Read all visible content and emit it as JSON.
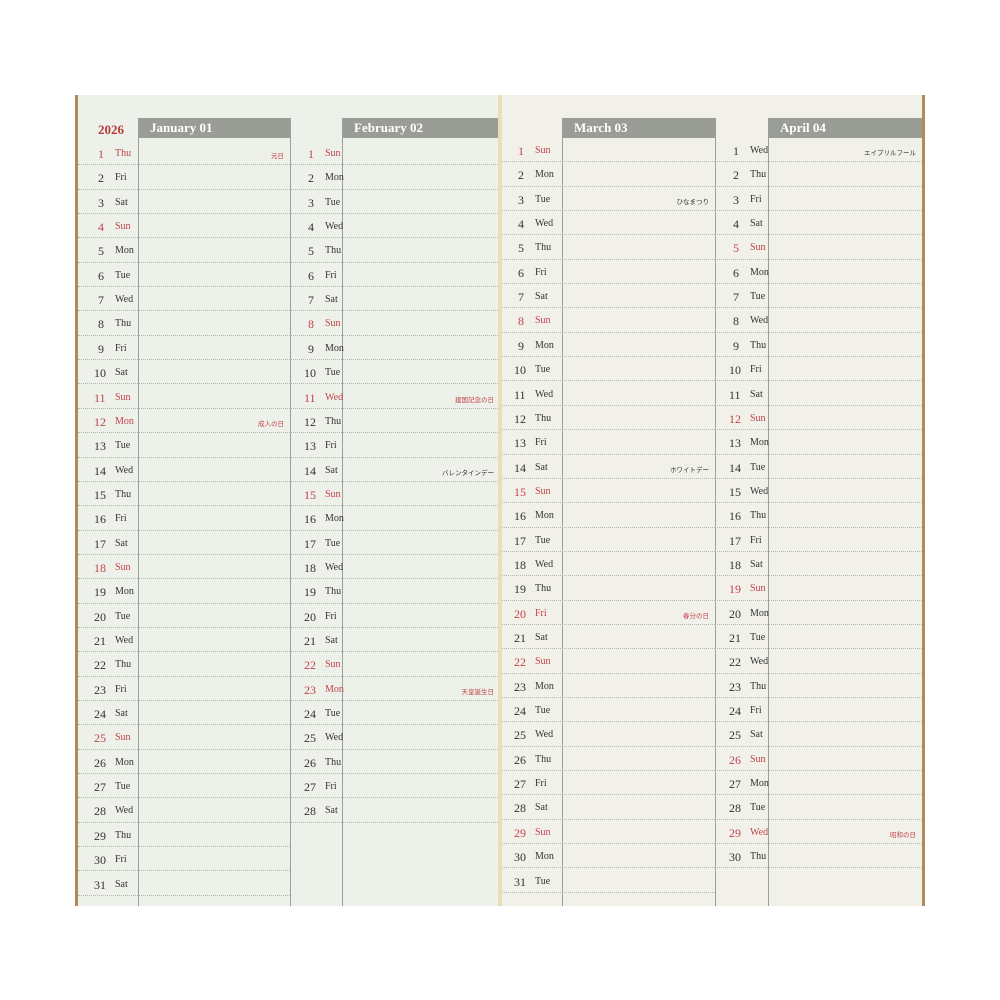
{
  "year": "2026",
  "colors": {
    "holiday": "#c0444a",
    "header_bar": "#9a9d96",
    "paper": "#eef0ea",
    "cover": "#b08a5c"
  },
  "months": [
    {
      "title": "January 01",
      "days": [
        {
          "d": "1",
          "w": "Thu",
          "red": true,
          "note": "元日"
        },
        {
          "d": "2",
          "w": "Fri"
        },
        {
          "d": "3",
          "w": "Sat"
        },
        {
          "d": "4",
          "w": "Sun",
          "red": true
        },
        {
          "d": "5",
          "w": "Mon"
        },
        {
          "d": "6",
          "w": "Tue"
        },
        {
          "d": "7",
          "w": "Wed"
        },
        {
          "d": "8",
          "w": "Thu"
        },
        {
          "d": "9",
          "w": "Fri"
        },
        {
          "d": "10",
          "w": "Sat"
        },
        {
          "d": "11",
          "w": "Sun",
          "red": true
        },
        {
          "d": "12",
          "w": "Mon",
          "red": true,
          "note": "成人の日"
        },
        {
          "d": "13",
          "w": "Tue"
        },
        {
          "d": "14",
          "w": "Wed"
        },
        {
          "d": "15",
          "w": "Thu"
        },
        {
          "d": "16",
          "w": "Fri"
        },
        {
          "d": "17",
          "w": "Sat"
        },
        {
          "d": "18",
          "w": "Sun",
          "red": true
        },
        {
          "d": "19",
          "w": "Mon"
        },
        {
          "d": "20",
          "w": "Tue"
        },
        {
          "d": "21",
          "w": "Wed"
        },
        {
          "d": "22",
          "w": "Thu"
        },
        {
          "d": "23",
          "w": "Fri"
        },
        {
          "d": "24",
          "w": "Sat"
        },
        {
          "d": "25",
          "w": "Sun",
          "red": true
        },
        {
          "d": "26",
          "w": "Mon"
        },
        {
          "d": "27",
          "w": "Tue"
        },
        {
          "d": "28",
          "w": "Wed"
        },
        {
          "d": "29",
          "w": "Thu"
        },
        {
          "d": "30",
          "w": "Fri"
        },
        {
          "d": "31",
          "w": "Sat"
        }
      ]
    },
    {
      "title": "February 02",
      "days": [
        {
          "d": "1",
          "w": "Sun",
          "red": true
        },
        {
          "d": "2",
          "w": "Mon"
        },
        {
          "d": "3",
          "w": "Tue"
        },
        {
          "d": "4",
          "w": "Wed"
        },
        {
          "d": "5",
          "w": "Thu"
        },
        {
          "d": "6",
          "w": "Fri"
        },
        {
          "d": "7",
          "w": "Sat"
        },
        {
          "d": "8",
          "w": "Sun",
          "red": true
        },
        {
          "d": "9",
          "w": "Mon"
        },
        {
          "d": "10",
          "w": "Tue"
        },
        {
          "d": "11",
          "w": "Wed",
          "red": true,
          "note": "建国記念の日"
        },
        {
          "d": "12",
          "w": "Thu"
        },
        {
          "d": "13",
          "w": "Fri"
        },
        {
          "d": "14",
          "w": "Sat",
          "note": "バレンタインデー"
        },
        {
          "d": "15",
          "w": "Sun",
          "red": true
        },
        {
          "d": "16",
          "w": "Mon"
        },
        {
          "d": "17",
          "w": "Tue"
        },
        {
          "d": "18",
          "w": "Wed"
        },
        {
          "d": "19",
          "w": "Thu"
        },
        {
          "d": "20",
          "w": "Fri"
        },
        {
          "d": "21",
          "w": "Sat"
        },
        {
          "d": "22",
          "w": "Sun",
          "red": true
        },
        {
          "d": "23",
          "w": "Mon",
          "red": true,
          "note": "天皇誕生日"
        },
        {
          "d": "24",
          "w": "Tue"
        },
        {
          "d": "25",
          "w": "Wed"
        },
        {
          "d": "26",
          "w": "Thu"
        },
        {
          "d": "27",
          "w": "Fri"
        },
        {
          "d": "28",
          "w": "Sat"
        }
      ]
    },
    {
      "title": "March 03",
      "days": [
        {
          "d": "1",
          "w": "Sun",
          "red": true
        },
        {
          "d": "2",
          "w": "Mon"
        },
        {
          "d": "3",
          "w": "Tue",
          "note": "ひなまつり"
        },
        {
          "d": "4",
          "w": "Wed"
        },
        {
          "d": "5",
          "w": "Thu"
        },
        {
          "d": "6",
          "w": "Fri"
        },
        {
          "d": "7",
          "w": "Sat"
        },
        {
          "d": "8",
          "w": "Sun",
          "red": true
        },
        {
          "d": "9",
          "w": "Mon"
        },
        {
          "d": "10",
          "w": "Tue"
        },
        {
          "d": "11",
          "w": "Wed"
        },
        {
          "d": "12",
          "w": "Thu"
        },
        {
          "d": "13",
          "w": "Fri"
        },
        {
          "d": "14",
          "w": "Sat",
          "note": "ホワイトデー"
        },
        {
          "d": "15",
          "w": "Sun",
          "red": true
        },
        {
          "d": "16",
          "w": "Mon"
        },
        {
          "d": "17",
          "w": "Tue"
        },
        {
          "d": "18",
          "w": "Wed"
        },
        {
          "d": "19",
          "w": "Thu"
        },
        {
          "d": "20",
          "w": "Fri",
          "red": true,
          "note": "春分の日"
        },
        {
          "d": "21",
          "w": "Sat"
        },
        {
          "d": "22",
          "w": "Sun",
          "red": true
        },
        {
          "d": "23",
          "w": "Mon"
        },
        {
          "d": "24",
          "w": "Tue"
        },
        {
          "d": "25",
          "w": "Wed"
        },
        {
          "d": "26",
          "w": "Thu"
        },
        {
          "d": "27",
          "w": "Fri"
        },
        {
          "d": "28",
          "w": "Sat"
        },
        {
          "d": "29",
          "w": "Sun",
          "red": true
        },
        {
          "d": "30",
          "w": "Mon"
        },
        {
          "d": "31",
          "w": "Tue"
        }
      ]
    },
    {
      "title": "April 04",
      "days": [
        {
          "d": "1",
          "w": "Wed",
          "note": "エイプリルフール"
        },
        {
          "d": "2",
          "w": "Thu"
        },
        {
          "d": "3",
          "w": "Fri"
        },
        {
          "d": "4",
          "w": "Sat"
        },
        {
          "d": "5",
          "w": "Sun",
          "red": true
        },
        {
          "d": "6",
          "w": "Mon"
        },
        {
          "d": "7",
          "w": "Tue"
        },
        {
          "d": "8",
          "w": "Wed"
        },
        {
          "d": "9",
          "w": "Thu"
        },
        {
          "d": "10",
          "w": "Fri"
        },
        {
          "d": "11",
          "w": "Sat"
        },
        {
          "d": "12",
          "w": "Sun",
          "red": true
        },
        {
          "d": "13",
          "w": "Mon"
        },
        {
          "d": "14",
          "w": "Tue"
        },
        {
          "d": "15",
          "w": "Wed"
        },
        {
          "d": "16",
          "w": "Thu"
        },
        {
          "d": "17",
          "w": "Fri"
        },
        {
          "d": "18",
          "w": "Sat"
        },
        {
          "d": "19",
          "w": "Sun",
          "red": true
        },
        {
          "d": "20",
          "w": "Mon"
        },
        {
          "d": "21",
          "w": "Tue"
        },
        {
          "d": "22",
          "w": "Wed"
        },
        {
          "d": "23",
          "w": "Thu"
        },
        {
          "d": "24",
          "w": "Fri"
        },
        {
          "d": "25",
          "w": "Sat"
        },
        {
          "d": "26",
          "w": "Sun",
          "red": true
        },
        {
          "d": "27",
          "w": "Mon"
        },
        {
          "d": "28",
          "w": "Tue"
        },
        {
          "d": "29",
          "w": "Wed",
          "red": true,
          "note": "昭和の日"
        },
        {
          "d": "30",
          "w": "Thu"
        }
      ]
    }
  ]
}
